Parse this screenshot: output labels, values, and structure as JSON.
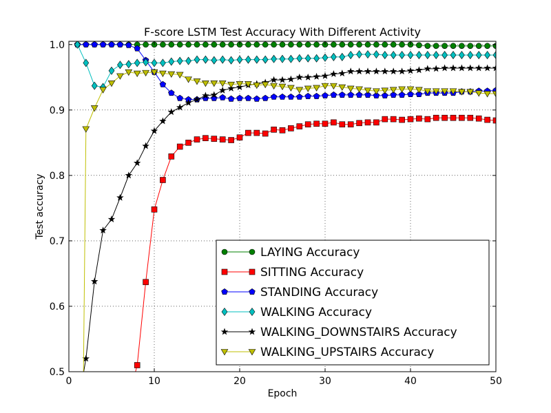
{
  "chart_data": {
    "type": "line",
    "title": "F-score LSTM Test Accuracy With Different Activity",
    "xlabel": "Epoch",
    "ylabel": "Test accuracy",
    "xlim": [
      0,
      50
    ],
    "ylim": [
      0.5,
      1.01
    ],
    "xticks": [
      0,
      10,
      20,
      30,
      40,
      50
    ],
    "yticks": [
      0.5,
      0.6,
      0.7,
      0.8,
      0.9,
      1.0
    ],
    "ytick_labels": [
      "0.5",
      "0.6",
      "0.7",
      "0.8",
      "0.9",
      "1.0"
    ],
    "grid": true,
    "legend_position": "lower-right",
    "series": [
      {
        "name": "LAYING Accuracy",
        "color": "#008000",
        "marker": "circle",
        "x": [
          1,
          2,
          3,
          4,
          5,
          6,
          7,
          8,
          9,
          10,
          11,
          12,
          13,
          14,
          15,
          16,
          17,
          18,
          19,
          20,
          21,
          22,
          23,
          24,
          25,
          26,
          27,
          28,
          29,
          30,
          31,
          32,
          33,
          34,
          35,
          36,
          37,
          38,
          39,
          40,
          41,
          42,
          43,
          44,
          45,
          46,
          47,
          48,
          49,
          50
        ],
        "y": [
          1.0,
          1.0,
          1.0,
          1.0,
          1.0,
          1.0,
          1.0,
          1.0,
          1.0,
          1.0,
          1.0,
          1.0,
          1.0,
          1.0,
          1.0,
          1.0,
          1.0,
          1.0,
          1.0,
          1.0,
          1.0,
          1.0,
          1.0,
          1.0,
          1.0,
          1.0,
          1.0,
          1.0,
          1.0,
          1.0,
          1.0,
          1.0,
          1.0,
          1.0,
          1.0,
          1.0,
          1.0,
          1.0,
          1.0,
          1.0,
          0.999,
          0.998,
          0.998,
          0.998,
          0.998,
          0.998,
          0.998,
          0.998,
          0.998,
          0.998
        ]
      },
      {
        "name": "SITTING Accuracy",
        "color": "#ff0000",
        "marker": "square",
        "x": [
          8,
          9,
          10,
          11,
          12,
          13,
          14,
          15,
          16,
          17,
          18,
          19,
          20,
          21,
          22,
          23,
          24,
          25,
          26,
          27,
          28,
          29,
          30,
          31,
          32,
          33,
          34,
          35,
          36,
          37,
          38,
          39,
          40,
          41,
          42,
          43,
          44,
          45,
          46,
          47,
          48,
          49,
          50
        ],
        "y": [
          0.51,
          0.637,
          0.748,
          0.793,
          0.829,
          0.844,
          0.85,
          0.855,
          0.857,
          0.856,
          0.855,
          0.854,
          0.858,
          0.865,
          0.865,
          0.864,
          0.87,
          0.869,
          0.872,
          0.875,
          0.878,
          0.879,
          0.879,
          0.881,
          0.878,
          0.878,
          0.88,
          0.881,
          0.881,
          0.886,
          0.886,
          0.885,
          0.886,
          0.887,
          0.886,
          0.888,
          0.888,
          0.888,
          0.888,
          0.888,
          0.887,
          0.885,
          0.884
        ]
      },
      {
        "name": "STANDING Accuracy",
        "color": "#0000ff",
        "marker": "pentagon",
        "x": [
          1,
          2,
          3,
          4,
          5,
          6,
          7,
          8,
          9,
          10,
          11,
          12,
          13,
          14,
          15,
          16,
          17,
          18,
          19,
          20,
          21,
          22,
          23,
          24,
          25,
          26,
          27,
          28,
          29,
          30,
          31,
          32,
          33,
          34,
          35,
          36,
          37,
          38,
          39,
          40,
          41,
          42,
          43,
          44,
          45,
          46,
          47,
          48,
          49,
          50
        ],
        "y": [
          1.0,
          1.0,
          1.0,
          1.0,
          1.0,
          1.0,
          0.999,
          0.994,
          0.976,
          0.958,
          0.939,
          0.926,
          0.918,
          0.916,
          0.916,
          0.918,
          0.918,
          0.919,
          0.917,
          0.918,
          0.918,
          0.917,
          0.918,
          0.92,
          0.92,
          0.92,
          0.92,
          0.921,
          0.921,
          0.922,
          0.923,
          0.923,
          0.923,
          0.923,
          0.923,
          0.922,
          0.922,
          0.923,
          0.923,
          0.924,
          0.924,
          0.926,
          0.926,
          0.926,
          0.926,
          0.928,
          0.928,
          0.929,
          0.929,
          0.93
        ]
      },
      {
        "name": "WALKING Accuracy",
        "color": "#00bfbf",
        "marker": "diamond",
        "x": [
          1,
          2,
          3,
          4,
          5,
          6,
          7,
          8,
          9,
          10,
          11,
          12,
          13,
          14,
          15,
          16,
          17,
          18,
          19,
          20,
          21,
          22,
          23,
          24,
          25,
          26,
          27,
          28,
          29,
          30,
          31,
          32,
          33,
          34,
          35,
          36,
          37,
          38,
          39,
          40,
          41,
          42,
          43,
          44,
          45,
          46,
          47,
          48,
          49,
          50
        ],
        "y": [
          1.0,
          0.972,
          0.937,
          0.935,
          0.96,
          0.969,
          0.97,
          0.972,
          0.973,
          0.972,
          0.972,
          0.974,
          0.975,
          0.975,
          0.977,
          0.977,
          0.976,
          0.977,
          0.976,
          0.977,
          0.977,
          0.977,
          0.977,
          0.978,
          0.978,
          0.978,
          0.979,
          0.979,
          0.979,
          0.98,
          0.981,
          0.981,
          0.984,
          0.985,
          0.985,
          0.985,
          0.984,
          0.984,
          0.984,
          0.984,
          0.984,
          0.984,
          0.984,
          0.984,
          0.984,
          0.984,
          0.984,
          0.984,
          0.984,
          0.984
        ]
      },
      {
        "name": "WALKING_DOWNSTAIRS Accuracy",
        "color": "#000000",
        "marker": "star",
        "x": [
          2,
          3,
          4,
          5,
          6,
          7,
          8,
          9,
          10,
          11,
          12,
          13,
          14,
          15,
          16,
          17,
          18,
          19,
          20,
          21,
          22,
          23,
          24,
          25,
          26,
          27,
          28,
          29,
          30,
          31,
          32,
          33,
          34,
          35,
          36,
          37,
          38,
          39,
          40,
          41,
          42,
          43,
          44,
          45,
          46,
          47,
          48,
          49,
          50
        ],
        "y": [
          0.52,
          0.638,
          0.716,
          0.733,
          0.766,
          0.8,
          0.819,
          0.845,
          0.868,
          0.883,
          0.897,
          0.904,
          0.911,
          0.916,
          0.922,
          0.923,
          0.93,
          0.933,
          0.935,
          0.938,
          0.94,
          0.942,
          0.946,
          0.946,
          0.947,
          0.95,
          0.95,
          0.951,
          0.952,
          0.955,
          0.956,
          0.959,
          0.959,
          0.959,
          0.959,
          0.959,
          0.959,
          0.959,
          0.96,
          0.961,
          0.963,
          0.963,
          0.964,
          0.964,
          0.964,
          0.964,
          0.964,
          0.964,
          0.964
        ]
      },
      {
        "name": "WALKING_UPSTAIRS Accuracy",
        "color": "#bfbf00",
        "marker": "triangle-down",
        "x": [
          2,
          3,
          4,
          5,
          6,
          7,
          8,
          9,
          10,
          11,
          12,
          13,
          14,
          15,
          16,
          17,
          18,
          19,
          20,
          21,
          22,
          23,
          24,
          25,
          26,
          27,
          28,
          29,
          30,
          31,
          32,
          33,
          34,
          35,
          36,
          37,
          38,
          39,
          40,
          41,
          42,
          43,
          44,
          45,
          46,
          47,
          48,
          49,
          50
        ],
        "y": [
          0.871,
          0.903,
          0.931,
          0.941,
          0.952,
          0.958,
          0.956,
          0.957,
          0.958,
          0.956,
          0.955,
          0.954,
          0.947,
          0.944,
          0.941,
          0.941,
          0.941,
          0.939,
          0.94,
          0.94,
          0.938,
          0.939,
          0.937,
          0.936,
          0.934,
          0.931,
          0.933,
          0.934,
          0.937,
          0.937,
          0.935,
          0.933,
          0.932,
          0.93,
          0.929,
          0.93,
          0.931,
          0.932,
          0.932,
          0.931,
          0.929,
          0.929,
          0.929,
          0.929,
          0.928,
          0.928,
          0.926,
          0.925,
          0.925
        ]
      }
    ]
  }
}
